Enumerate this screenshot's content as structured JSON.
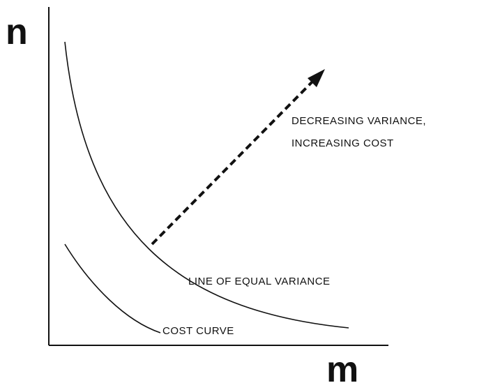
{
  "axes": {
    "y_label": "n",
    "x_label": "m"
  },
  "annotations": {
    "direction": [
      "DECREASING VARIANCE,",
      "INCREASING COST"
    ],
    "equal_variance": "LINE OF EQUAL VARIANCE",
    "cost_curve": "COST CURVE"
  }
}
